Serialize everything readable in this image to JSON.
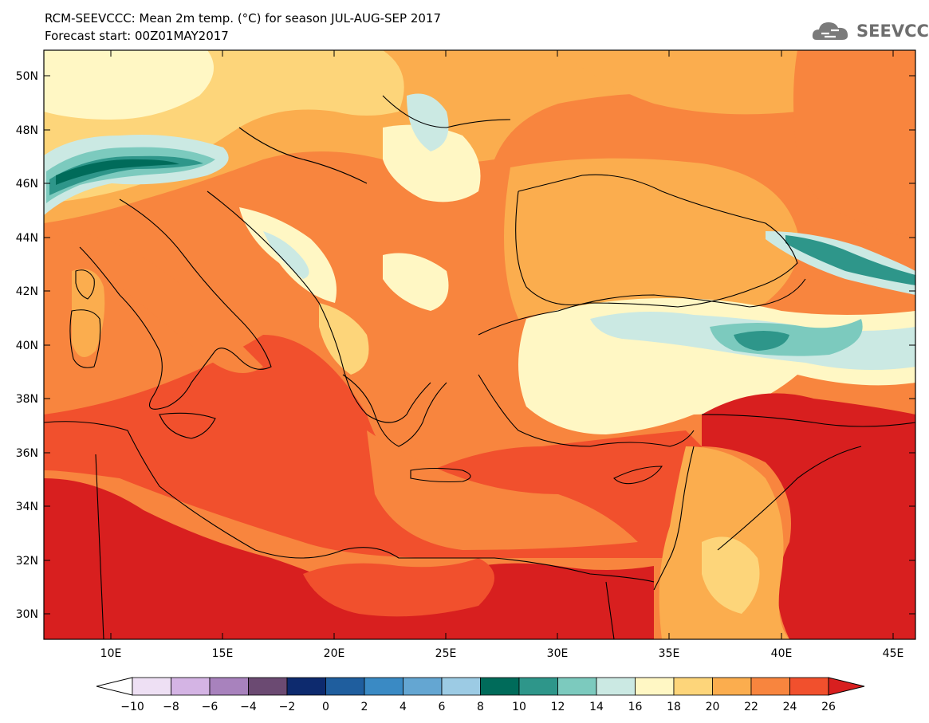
{
  "title": {
    "line1": "RCM-SEEVCCC: Mean 2m temp. (°C) for season JUL-AUG-SEP 2017",
    "line2": "Forecast start: 00Z01MAY2017"
  },
  "logo": {
    "text": "SEEVCCC",
    "icon": "cloud-icon"
  },
  "map": {
    "lat_range": [
      29,
      51
    ],
    "lon_range": [
      7,
      46
    ],
    "lat_ticks": [
      "50N",
      "48N",
      "46N",
      "44N",
      "42N",
      "40N",
      "38N",
      "36N",
      "34N",
      "32N",
      "30N"
    ],
    "lon_ticks": [
      "10E",
      "15E",
      "20E",
      "25E",
      "30E",
      "35E",
      "40E",
      "45E"
    ]
  },
  "colorbar": {
    "labels": [
      "−10",
      "−8",
      "−6",
      "−4",
      "−2",
      "0",
      "2",
      "4",
      "6",
      "8",
      "10",
      "12",
      "14",
      "16",
      "18",
      "20",
      "22",
      "24",
      "26"
    ],
    "colors": [
      "#ffffff",
      "#eee0f4",
      "#d4b4e4",
      "#a882bd",
      "#6b4a72",
      "#0d2a6e",
      "#1f5e9e",
      "#3a8ac4",
      "#64a6d2",
      "#9ccbe4",
      "#006b5a",
      "#2e968a",
      "#7ccabe",
      "#cbe9e3",
      "#fff7c4",
      "#fdd57a",
      "#fbad4e",
      "#f8853e",
      "#f1502d",
      "#d81f1f"
    ]
  },
  "colors": {
    "c16": "#fff7c4",
    "c18": "#fdd57a",
    "c20": "#fbad4e",
    "c22": "#f8853e",
    "c24": "#f1502d",
    "c26": "#d81f1f",
    "c10": "#006b5a",
    "c12": "#2e968a",
    "c14": "#7ccabe",
    "c15": "#cbe9e3"
  }
}
